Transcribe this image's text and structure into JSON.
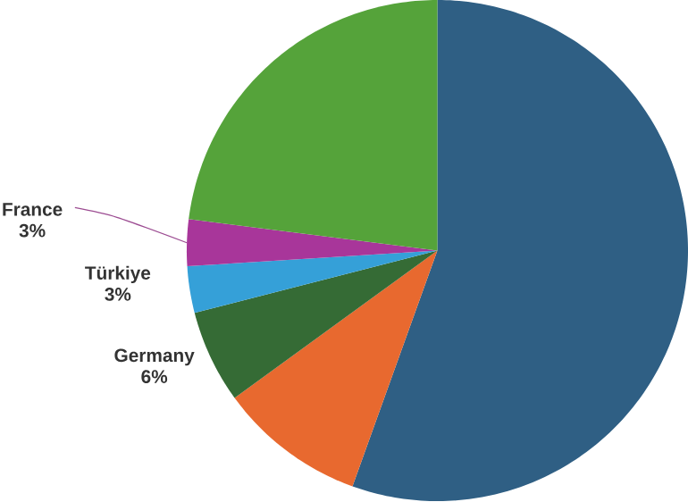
{
  "chart_data": {
    "type": "pie",
    "categories": [
      null,
      null,
      "Germany",
      "Türkiye",
      "France",
      null
    ],
    "values": [
      55.5,
      9.5,
      6,
      3,
      3,
      23
    ],
    "colors": [
      "#2f5f84",
      "#e8692f",
      "#356b35",
      "#35a0d8",
      "#a8369a",
      "#55a33a"
    ],
    "value_labels": [
      null,
      null,
      "6%",
      "3%",
      "3%",
      null
    ]
  }
}
